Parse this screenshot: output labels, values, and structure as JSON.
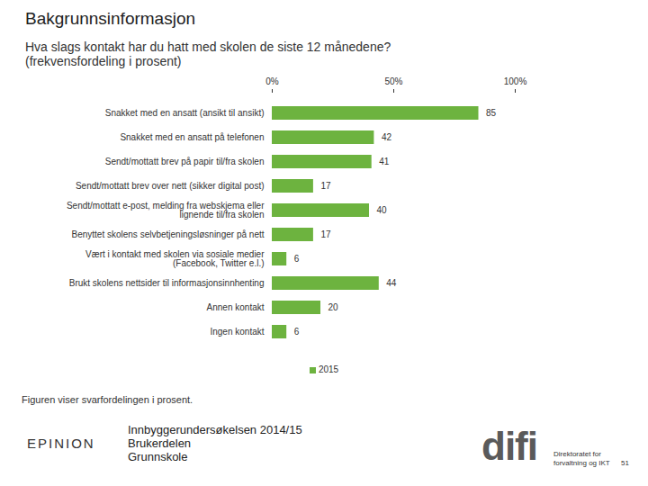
{
  "chart_data": {
    "type": "bar",
    "title": "Bakgrunnsinformasjon",
    "subtitle": "Hva slags kontakt har du hatt med skolen de siste 12 månedene? (frekvensfordeling i prosent)",
    "orientation": "horizontal",
    "categories": [
      "Snakket med en ansatt (ansikt til ansikt)",
      "Snakket med en ansatt på telefonen",
      "Sendt/mottatt brev på papir til/fra skolen",
      "Sendt/mottatt brev over nett (sikker digital post)",
      "Sendt/mottatt e-post, melding fra webskjema eller\nlignende til/fra skolen",
      "Benyttet skolens selvbetjeningsløsninger på nett",
      "Vært i kontakt med skolen via sosiale medier\n(Facebook, Twitter e.l.)",
      "Brukt skolens nettsider til informasjonsinnhenting",
      "Annen kontakt",
      "Ingen kontakt"
    ],
    "series": [
      {
        "name": "2015",
        "color": "#6db33f",
        "values": [
          85,
          42,
          41,
          17,
          40,
          17,
          6,
          44,
          20,
          6
        ]
      }
    ],
    "xlim": [
      0,
      100
    ],
    "xticks": [
      {
        "value": 0,
        "label": "0%"
      },
      {
        "value": 50,
        "label": "50%"
      },
      {
        "value": 100,
        "label": "100%"
      }
    ],
    "grid": false,
    "data_labels": true,
    "legend": "bottom",
    "caption": "Figuren viser svarfordelingen i prosent."
  },
  "footer": {
    "logo_left": "EPINION",
    "source_lines": [
      "Innbyggerundersøkelsen 2014/15",
      "Brukerdelen",
      "Grunnskole"
    ],
    "logo_right": "difi",
    "logo_right_text": [
      "Direktoratet for",
      "forvaltning og IKT"
    ],
    "page_number": "51"
  }
}
